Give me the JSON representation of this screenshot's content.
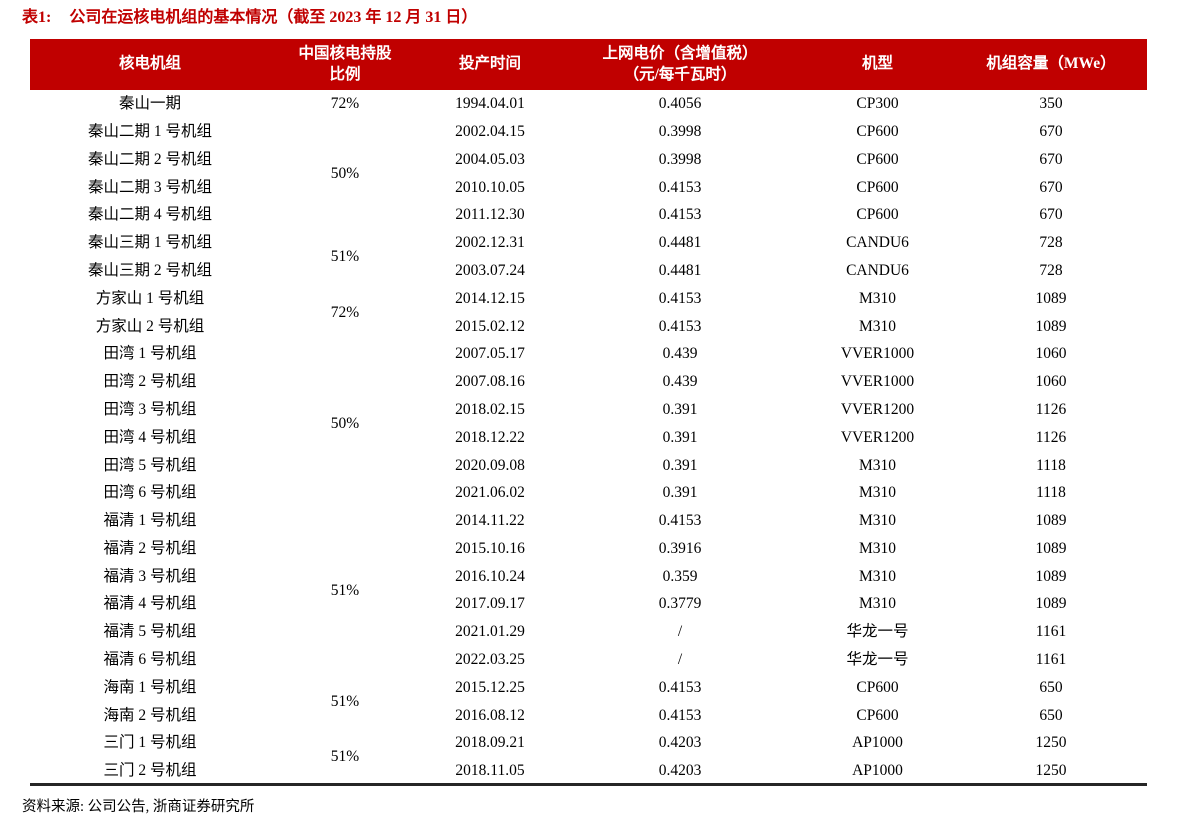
{
  "title": {
    "label": "表1:",
    "text": "公司在运核电机组的基本情况（截至 2023 年 12 月 31 日）"
  },
  "table": {
    "headers": [
      "核电机组",
      "中国核电持股\n比例",
      "投产时间",
      "上网电价（含增值税）\n（元/每千瓦时）",
      "机型",
      "机组容量（MWe）"
    ],
    "rows": [
      {
        "unit": "秦山一期",
        "ownership": "72%",
        "ownership_span": 1,
        "date": "1994.04.01",
        "price": "0.4056",
        "model": "CP300",
        "capacity": "350"
      },
      {
        "unit": "秦山二期 1 号机组",
        "ownership": "50%",
        "ownership_span": 4,
        "date": "2002.04.15",
        "price": "0.3998",
        "model": "CP600",
        "capacity": "670"
      },
      {
        "unit": "秦山二期 2 号机组",
        "date": "2004.05.03",
        "price": "0.3998",
        "model": "CP600",
        "capacity": "670"
      },
      {
        "unit": "秦山二期 3 号机组",
        "date": "2010.10.05",
        "price": "0.4153",
        "model": "CP600",
        "capacity": "670"
      },
      {
        "unit": "秦山二期 4 号机组",
        "date": "2011.12.30",
        "price": "0.4153",
        "model": "CP600",
        "capacity": "670"
      },
      {
        "unit": "秦山三期 1 号机组",
        "ownership": "51%",
        "ownership_span": 2,
        "date": "2002.12.31",
        "price": "0.4481",
        "model": "CANDU6",
        "capacity": "728"
      },
      {
        "unit": "秦山三期 2 号机组",
        "date": "2003.07.24",
        "price": "0.4481",
        "model": "CANDU6",
        "capacity": "728"
      },
      {
        "unit": "方家山 1 号机组",
        "ownership": "72%",
        "ownership_span": 2,
        "date": "2014.12.15",
        "price": "0.4153",
        "model": "M310",
        "capacity": "1089"
      },
      {
        "unit": "方家山 2 号机组",
        "date": "2015.02.12",
        "price": "0.4153",
        "model": "M310",
        "capacity": "1089"
      },
      {
        "unit": "田湾 1 号机组",
        "ownership": "50%",
        "ownership_span": 6,
        "date": "2007.05.17",
        "price": "0.439",
        "model": "VVER1000",
        "capacity": "1060"
      },
      {
        "unit": "田湾 2 号机组",
        "date": "2007.08.16",
        "price": "0.439",
        "model": "VVER1000",
        "capacity": "1060"
      },
      {
        "unit": "田湾 3 号机组",
        "date": "2018.02.15",
        "price": "0.391",
        "model": "VVER1200",
        "capacity": "1126"
      },
      {
        "unit": "田湾 4 号机组",
        "date": "2018.12.22",
        "price": "0.391",
        "model": "VVER1200",
        "capacity": "1126"
      },
      {
        "unit": "田湾 5 号机组",
        "date": "2020.09.08",
        "price": "0.391",
        "model": "M310",
        "capacity": "1118"
      },
      {
        "unit": "田湾 6 号机组",
        "date": "2021.06.02",
        "price": "0.391",
        "model": "M310",
        "capacity": "1118"
      },
      {
        "unit": "福清 1 号机组",
        "ownership": "51%",
        "ownership_span": 6,
        "date": "2014.11.22",
        "price": "0.4153",
        "model": "M310",
        "capacity": "1089"
      },
      {
        "unit": "福清 2 号机组",
        "date": "2015.10.16",
        "price": "0.3916",
        "model": "M310",
        "capacity": "1089"
      },
      {
        "unit": "福清 3 号机组",
        "date": "2016.10.24",
        "price": "0.359",
        "model": "M310",
        "capacity": "1089"
      },
      {
        "unit": "福清 4 号机组",
        "date": "2017.09.17",
        "price": "0.3779",
        "model": "M310",
        "capacity": "1089"
      },
      {
        "unit": "福清 5 号机组",
        "date": "2021.01.29",
        "price": "/",
        "model": "华龙一号",
        "capacity": "1161"
      },
      {
        "unit": "福清 6 号机组",
        "date": "2022.03.25",
        "price": "/",
        "model": "华龙一号",
        "capacity": "1161"
      },
      {
        "unit": "海南 1 号机组",
        "ownership": "51%",
        "ownership_span": 2,
        "date": "2015.12.25",
        "price": "0.4153",
        "model": "CP600",
        "capacity": "650"
      },
      {
        "unit": "海南 2 号机组",
        "date": "2016.08.12",
        "price": "0.4153",
        "model": "CP600",
        "capacity": "650"
      },
      {
        "unit": "三门 1 号机组",
        "ownership": "51%",
        "ownership_span": 2,
        "date": "2018.09.21",
        "price": "0.4203",
        "model": "AP1000",
        "capacity": "1250"
      },
      {
        "unit": "三门 2 号机组",
        "date": "2018.11.05",
        "price": "0.4203",
        "model": "AP1000",
        "capacity": "1250"
      }
    ]
  },
  "source": "资料来源: 公司公告, 浙商证券研究所",
  "colors": {
    "accent_red": "#c00000",
    "border_dark": "#262626",
    "text": "#000000"
  }
}
